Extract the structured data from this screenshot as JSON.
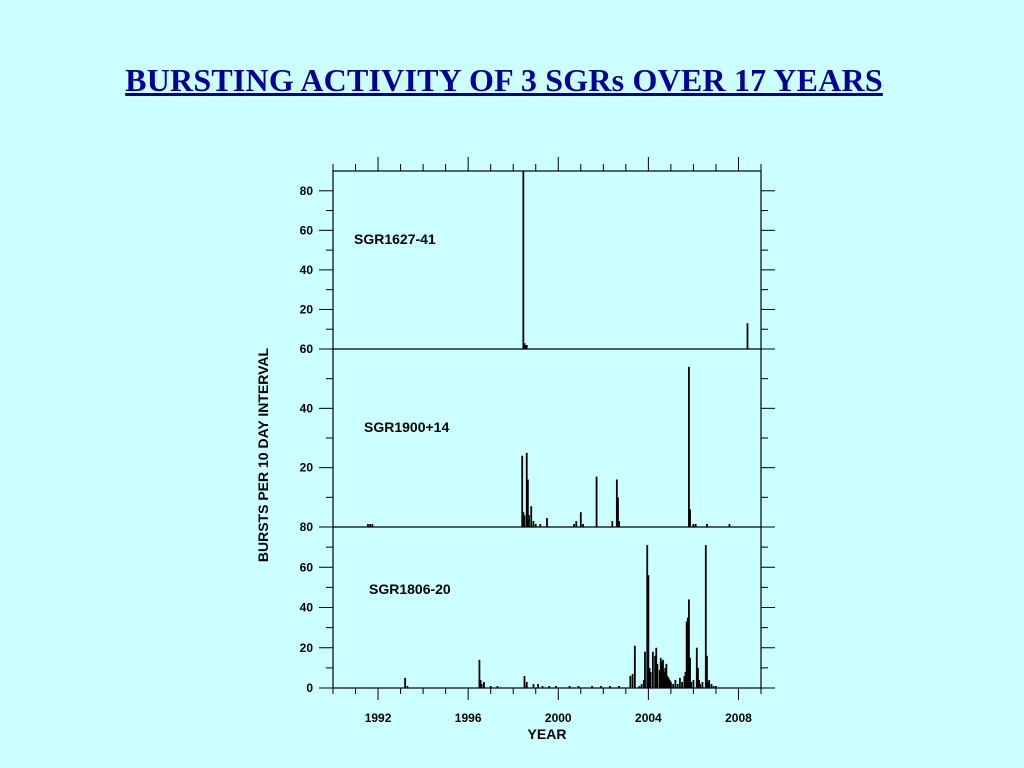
{
  "slide": {
    "title": "BURSTING ACTIVITY OF 3 SGRs OVER 17 YEARS"
  },
  "chart_data": {
    "type": "bar",
    "xlabel": "YEAR",
    "ylabel": "BURSTS PER 10 DAY INTERVAL",
    "xlim": [
      1990,
      2009
    ],
    "xticks": [
      1992,
      1996,
      2000,
      2004,
      2008
    ],
    "grid": false,
    "panels": [
      {
        "name": "SGR1627-41",
        "ylim": [
          0,
          90
        ],
        "yticks": [
          20,
          40,
          60,
          80
        ],
        "bars": [
          [
            1998.45,
            90
          ],
          [
            1998.5,
            3
          ],
          [
            1998.55,
            2
          ],
          [
            1998.6,
            2
          ],
          [
            2008.4,
            13
          ]
        ]
      },
      {
        "name": "SGR1900+14",
        "ylim": [
          0,
          60
        ],
        "yticks": [
          20,
          40,
          60
        ],
        "bars": [
          [
            1991.55,
            1
          ],
          [
            1991.65,
            1
          ],
          [
            1991.75,
            1
          ],
          [
            1998.4,
            24
          ],
          [
            1998.45,
            5
          ],
          [
            1998.5,
            4
          ],
          [
            1998.6,
            25
          ],
          [
            1998.65,
            16
          ],
          [
            1998.7,
            4
          ],
          [
            1998.8,
            7
          ],
          [
            1998.9,
            2
          ],
          [
            1999.0,
            1
          ],
          [
            1999.2,
            1
          ],
          [
            1999.5,
            3
          ],
          [
            2000.7,
            1
          ],
          [
            2000.8,
            2
          ],
          [
            2001.0,
            5
          ],
          [
            2001.1,
            1
          ],
          [
            2001.7,
            17
          ],
          [
            2002.4,
            2
          ],
          [
            2002.6,
            16
          ],
          [
            2002.65,
            10
          ],
          [
            2002.7,
            2
          ],
          [
            2005.8,
            54
          ],
          [
            2005.85,
            6
          ],
          [
            2006.0,
            1
          ],
          [
            2006.1,
            1
          ],
          [
            2006.6,
            1
          ],
          [
            2007.6,
            1
          ]
        ]
      },
      {
        "name": "SGR1806-20",
        "ylim": [
          0,
          80
        ],
        "yticks": [
          0,
          20,
          40,
          60,
          80
        ],
        "bars": [
          [
            1993.2,
            5
          ],
          [
            1993.3,
            1
          ],
          [
            1996.5,
            14
          ],
          [
            1996.55,
            4
          ],
          [
            1996.6,
            2
          ],
          [
            1996.7,
            3
          ],
          [
            1997.0,
            1
          ],
          [
            1997.3,
            1
          ],
          [
            1998.5,
            6
          ],
          [
            1998.6,
            3
          ],
          [
            1998.9,
            2
          ],
          [
            1999.1,
            2
          ],
          [
            1999.3,
            1
          ],
          [
            1999.6,
            1
          ],
          [
            1999.9,
            1
          ],
          [
            2000.5,
            1
          ],
          [
            2000.9,
            1
          ],
          [
            2001.5,
            1
          ],
          [
            2001.9,
            1
          ],
          [
            2002.3,
            1
          ],
          [
            2002.7,
            1
          ],
          [
            2003.2,
            6
          ],
          [
            2003.3,
            7
          ],
          [
            2003.4,
            21
          ],
          [
            2003.6,
            1
          ],
          [
            2003.7,
            2
          ],
          [
            2003.8,
            4
          ],
          [
            2003.85,
            18
          ],
          [
            2003.95,
            71
          ],
          [
            2004.0,
            56
          ],
          [
            2004.05,
            10
          ],
          [
            2004.1,
            8
          ],
          [
            2004.2,
            18
          ],
          [
            2004.3,
            16
          ],
          [
            2004.35,
            20
          ],
          [
            2004.4,
            12
          ],
          [
            2004.5,
            9
          ],
          [
            2004.55,
            15
          ],
          [
            2004.6,
            13
          ],
          [
            2004.65,
            14
          ],
          [
            2004.7,
            8
          ],
          [
            2004.75,
            10
          ],
          [
            2004.8,
            12
          ],
          [
            2004.85,
            6
          ],
          [
            2004.9,
            5
          ],
          [
            2004.95,
            4
          ],
          [
            2005.0,
            3
          ],
          [
            2005.1,
            2
          ],
          [
            2005.2,
            4
          ],
          [
            2005.3,
            2
          ],
          [
            2005.4,
            5
          ],
          [
            2005.5,
            3
          ],
          [
            2005.6,
            6
          ],
          [
            2005.65,
            8
          ],
          [
            2005.7,
            33
          ],
          [
            2005.75,
            35
          ],
          [
            2005.8,
            44
          ],
          [
            2005.85,
            15
          ],
          [
            2005.9,
            3
          ],
          [
            2006.0,
            4
          ],
          [
            2006.15,
            20
          ],
          [
            2006.2,
            10
          ],
          [
            2006.25,
            4
          ],
          [
            2006.3,
            2
          ],
          [
            2006.4,
            3
          ],
          [
            2006.55,
            71
          ],
          [
            2006.6,
            16
          ],
          [
            2006.65,
            3
          ],
          [
            2006.7,
            4
          ],
          [
            2006.8,
            2
          ],
          [
            2006.9,
            1
          ],
          [
            2007.0,
            1
          ]
        ]
      }
    ]
  }
}
